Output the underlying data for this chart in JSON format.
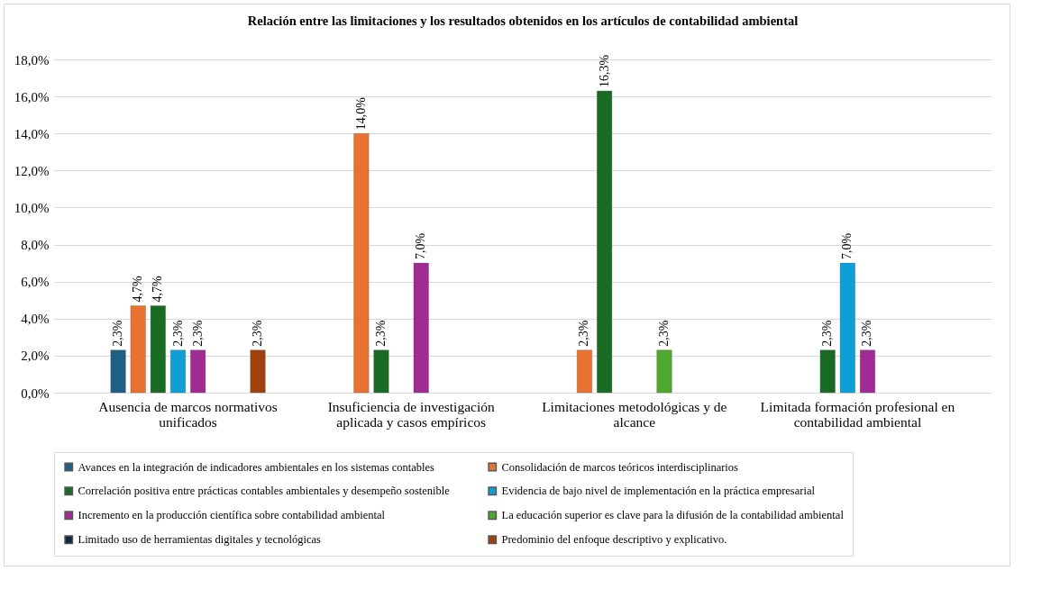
{
  "chart_data": {
    "type": "bar",
    "title": "Relación entre las limitaciones  y los resultados obtenidos en los artículos de contabilidad  ambiental",
    "categories": [
      "Ausencia de marcos normativos unificados",
      "Insuficiencia de investigación aplicada y casos empíricos",
      "Limitaciones metodológicas y de alcance",
      "Limitada formación profesional en contabilidad ambiental"
    ],
    "series": [
      {
        "name": "Avances en la integración de indicadores ambientales en los sistemas contables",
        "color": "#1f5f85",
        "values": [
          2.3,
          null,
          null,
          null
        ],
        "value_labels": [
          "2,3%",
          null,
          null,
          null
        ]
      },
      {
        "name": "Consolidación de marcos teóricos interdisciplinarios",
        "color": "#e97132",
        "values": [
          4.7,
          14.0,
          2.3,
          null
        ],
        "value_labels": [
          "4,7%",
          "14,0%",
          "2,3%",
          null
        ]
      },
      {
        "name": "Correlación positiva entre prácticas contables ambientales y desempeño sostenible",
        "color": "#196b24",
        "values": [
          4.7,
          2.3,
          16.3,
          2.3
        ],
        "value_labels": [
          "4,7%",
          "2,3%",
          "16,3%",
          "2,3%"
        ]
      },
      {
        "name": "Evidencia de bajo nivel de implementación en la práctica empresarial",
        "color": "#0f9ed5",
        "values": [
          2.3,
          null,
          null,
          7.0
        ],
        "value_labels": [
          "2,3%",
          null,
          null,
          "7,0%"
        ]
      },
      {
        "name": "Incremento en la producción científica sobre contabilidad ambiental",
        "color": "#a02b93",
        "values": [
          2.3,
          7.0,
          null,
          2.3
        ],
        "value_labels": [
          "2,3%",
          "7,0%",
          null,
          "2,3%"
        ]
      },
      {
        "name": "La educación superior es clave para la difusión de la contabilidad ambiental",
        "color": "#4ea72e",
        "values": [
          null,
          null,
          2.3,
          null
        ],
        "value_labels": [
          null,
          null,
          "2,3%",
          null
        ]
      },
      {
        "name": "Limitado uso de herramientas digitales y tecnológicas",
        "color": "#0e2841",
        "values": [
          null,
          null,
          null,
          null
        ]
      },
      {
        "name": "Predominio del enfoque descriptivo y explicativo.",
        "color": "#a0410d",
        "values": [
          2.3,
          null,
          null,
          null
        ],
        "value_labels": [
          "2,3%",
          null,
          null,
          null
        ]
      }
    ],
    "ylim": [
      0,
      18
    ],
    "yticks": [
      {
        "value": 0,
        "label": "0,0%"
      },
      {
        "value": 2,
        "label": "2,0%"
      },
      {
        "value": 4,
        "label": "4,0%"
      },
      {
        "value": 6,
        "label": "6,0%"
      },
      {
        "value": 8,
        "label": "8,0%"
      },
      {
        "value": 10,
        "label": "10,0%"
      },
      {
        "value": 12,
        "label": "12,0%"
      },
      {
        "value": 14,
        "label": "14,0%"
      },
      {
        "value": 16,
        "label": "16,0%"
      },
      {
        "value": 18,
        "label": "18,0%"
      }
    ],
    "grid": "y",
    "legend": "bottom"
  }
}
